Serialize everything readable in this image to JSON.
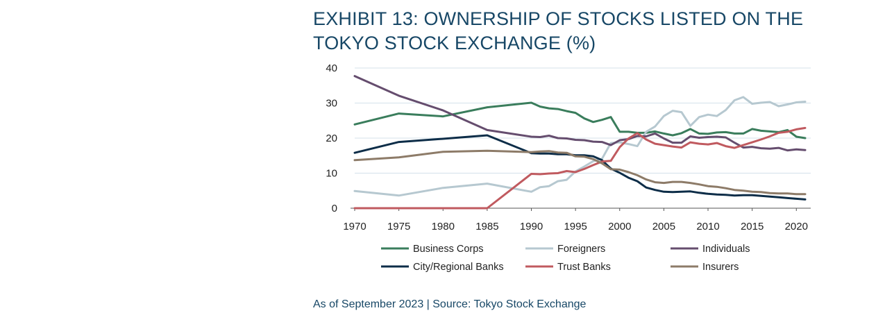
{
  "title": "EXHIBIT 13: OWNERSHIP OF STOCKS LISTED ON THE TOKYO STOCK EXCHANGE (%)",
  "source": "As of September 2023 | Source: Tokyo Stock Exchange",
  "chart_data": {
    "type": "line",
    "xlim": [
      1970,
      2021
    ],
    "ylim": [
      0,
      40
    ],
    "xticks": [
      "1970",
      "1975",
      "1980",
      "1985",
      "1990",
      "1995",
      "2000",
      "2005",
      "2010",
      "2015",
      "2020"
    ],
    "yticks": [
      "0",
      "10",
      "20",
      "30",
      "40"
    ],
    "grid": "horizontal",
    "legend_position": "bottom",
    "x": [
      1970,
      1975,
      1980,
      1985,
      1990,
      1991,
      1992,
      1993,
      1994,
      1995,
      1996,
      1997,
      1998,
      1999,
      2000,
      2001,
      2002,
      2003,
      2004,
      2005,
      2006,
      2007,
      2008,
      2009,
      2010,
      2011,
      2012,
      2013,
      2014,
      2015,
      2016,
      2017,
      2018,
      2019,
      2020,
      2021
    ],
    "series": [
      {
        "name": "Business Corps",
        "color": "#3a7d5c",
        "values": [
          23.9,
          27.0,
          26.2,
          28.8,
          30.1,
          29.0,
          28.5,
          28.3,
          27.7,
          27.2,
          25.6,
          24.6,
          25.2,
          26.0,
          21.8,
          21.8,
          21.5,
          21.5,
          21.9,
          21.3,
          20.8,
          21.4,
          22.6,
          21.3,
          21.2,
          21.6,
          21.7,
          21.3,
          21.3,
          22.6,
          22.1,
          21.9,
          21.7,
          22.3,
          20.4,
          20.0
        ]
      },
      {
        "name": "Foreigners",
        "color": "#b6c8d0",
        "values": [
          4.9,
          3.6,
          5.8,
          7.0,
          4.7,
          6.0,
          6.3,
          7.7,
          8.1,
          10.5,
          11.9,
          13.4,
          14.1,
          18.6,
          18.8,
          18.3,
          17.7,
          21.8,
          23.3,
          26.3,
          27.8,
          27.4,
          23.5,
          26.0,
          26.7,
          26.3,
          28.0,
          30.8,
          31.7,
          29.8,
          30.1,
          30.3,
          29.1,
          29.6,
          30.2,
          30.4
        ]
      },
      {
        "name": "Individuals",
        "color": "#654d6e",
        "values": [
          37.7,
          32.1,
          27.9,
          22.3,
          20.4,
          20.3,
          20.7,
          20.0,
          19.9,
          19.5,
          19.4,
          19.0,
          18.9,
          18.0,
          19.4,
          19.7,
          20.6,
          20.5,
          21.3,
          19.9,
          18.7,
          18.7,
          20.5,
          20.1,
          20.3,
          20.4,
          20.2,
          18.7,
          17.3,
          17.5,
          17.1,
          17.0,
          17.2,
          16.5,
          16.8,
          16.6
        ]
      },
      {
        "name": "City/Regional Banks",
        "color": "#0d2d48",
        "values": [
          15.8,
          18.9,
          19.8,
          20.8,
          15.7,
          15.6,
          15.6,
          15.4,
          15.4,
          15.1,
          15.1,
          14.8,
          13.7,
          11.3,
          10.1,
          8.7,
          7.7,
          5.9,
          5.2,
          4.7,
          4.6,
          4.7,
          4.8,
          4.4,
          4.1,
          3.9,
          3.8,
          3.6,
          3.7,
          3.7,
          3.5,
          3.3,
          3.1,
          2.9,
          2.7,
          2.5
        ]
      },
      {
        "name": "Trust Banks",
        "color": "#c05a5f",
        "values": [
          0,
          0,
          0,
          0,
          9.8,
          9.7,
          9.9,
          10.0,
          10.6,
          10.3,
          11.2,
          12.3,
          13.3,
          13.5,
          17.4,
          19.9,
          21.4,
          19.6,
          18.4,
          18.0,
          17.6,
          17.3,
          18.8,
          18.4,
          18.2,
          18.6,
          17.7,
          17.2,
          18.0,
          18.8,
          19.6,
          20.5,
          21.5,
          21.8,
          22.5,
          22.9
        ]
      },
      {
        "name": "Insurers",
        "color": "#8d7b68",
        "values": [
          13.7,
          14.5,
          16.1,
          16.4,
          16.0,
          16.2,
          16.3,
          15.9,
          15.8,
          14.8,
          14.7,
          14.0,
          12.8,
          11.1,
          11.0,
          10.3,
          9.4,
          8.2,
          7.4,
          7.2,
          7.5,
          7.5,
          7.2,
          6.8,
          6.3,
          6.1,
          5.7,
          5.2,
          5.0,
          4.7,
          4.6,
          4.3,
          4.2,
          4.2,
          4.0,
          4.0
        ]
      }
    ]
  }
}
